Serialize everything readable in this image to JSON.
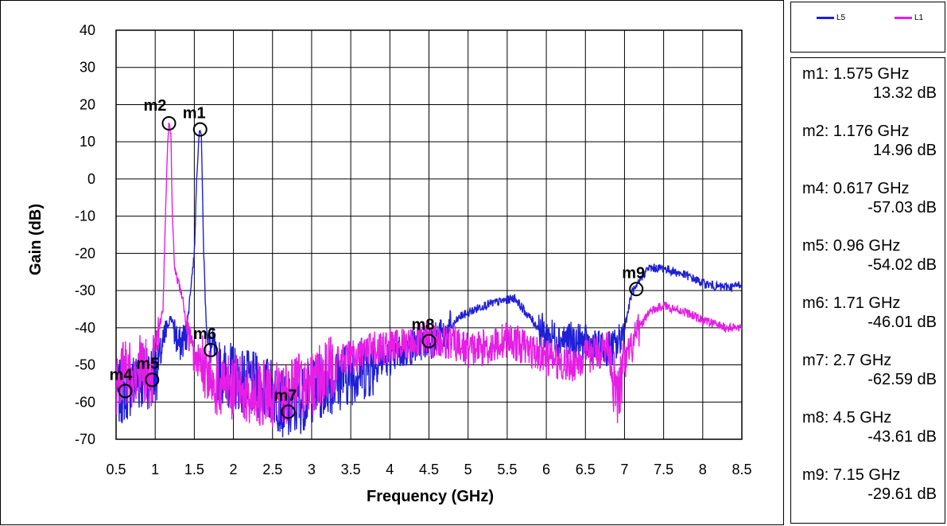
{
  "chart_data": {
    "type": "line",
    "xlabel": "Frequency (GHz)",
    "ylabel": "Gain (dB)",
    "xlim": [
      0.5,
      8.5
    ],
    "ylim": [
      -70,
      40
    ],
    "xticks": [
      "0.5",
      "1",
      "1.5",
      "2",
      "2.5",
      "3",
      "3.5",
      "4",
      "4.5",
      "5",
      "5.5",
      "6",
      "6.5",
      "7",
      "7.5",
      "8",
      "8.5"
    ],
    "yticks": [
      "40",
      "30",
      "20",
      "10",
      "0",
      "-10",
      "-20",
      "-30",
      "-40",
      "-50",
      "-60",
      "-70"
    ],
    "grid": true,
    "legend_position": "top-right",
    "series": [
      {
        "name": "L5",
        "color": "#1f1fd6",
        "x": [
          0.5,
          0.6,
          0.7,
          0.8,
          0.9,
          1.0,
          1.1,
          1.15,
          1.2,
          1.3,
          1.4,
          1.45,
          1.5,
          1.53,
          1.56,
          1.575,
          1.59,
          1.62,
          1.65,
          1.7,
          1.75,
          1.8,
          2.0,
          2.2,
          2.5,
          2.7,
          3.0,
          3.3,
          3.5,
          3.8,
          4.0,
          4.2,
          4.4,
          4.5,
          4.7,
          4.9,
          5.0,
          5.2,
          5.4,
          5.6,
          5.7,
          5.9,
          6.0,
          6.2,
          6.5,
          6.7,
          6.9,
          7.0,
          7.05,
          7.1,
          7.15,
          7.2,
          7.3,
          7.5,
          7.8,
          8.0,
          8.2,
          8.4,
          8.5
        ],
        "y": [
          -58,
          -57,
          -55,
          -54,
          -53,
          -52,
          -45,
          -40,
          -37,
          -45,
          -42,
          -30,
          -20,
          0,
          12,
          13.32,
          12,
          -20,
          -38,
          -46,
          -45,
          -52,
          -53,
          -55,
          -57,
          -62.59,
          -57,
          -54,
          -52,
          -50,
          -48,
          -46,
          -44,
          -43.61,
          -42,
          -37,
          -36,
          -34,
          -33,
          -32,
          -35,
          -40,
          -42,
          -43,
          -44,
          -46,
          -45,
          -40,
          -35,
          -30,
          -29.61,
          -27,
          -24,
          -24,
          -26,
          -28,
          -29,
          -29,
          -28
        ]
      },
      {
        "name": "L1",
        "color": "#e61ee6",
        "x": [
          0.5,
          0.6,
          0.7,
          0.8,
          0.9,
          0.96,
          1.0,
          1.05,
          1.1,
          1.13,
          1.16,
          1.176,
          1.2,
          1.22,
          1.25,
          1.3,
          1.35,
          1.4,
          1.5,
          1.6,
          1.7,
          1.8,
          2.0,
          2.2,
          2.5,
          3.0,
          3.3,
          3.5,
          3.8,
          4.0,
          4.3,
          4.5,
          4.8,
          5.0,
          5.3,
          5.5,
          5.8,
          6.0,
          6.3,
          6.5,
          6.8,
          6.9,
          7.0,
          7.1,
          7.2,
          7.3,
          7.5,
          7.8,
          8.0,
          8.3,
          8.5
        ],
        "y": [
          -55,
          -52,
          -53,
          -50,
          -52,
          -54.02,
          -45,
          -40,
          -35,
          -10,
          10,
          14.96,
          12,
          -10,
          -25,
          -28,
          -32,
          -40,
          -48,
          -50,
          -52,
          -55,
          -56,
          -57,
          -58,
          -55,
          -50,
          -48,
          -46,
          -45,
          -44,
          -43,
          -44,
          -46,
          -45,
          -43,
          -46,
          -48,
          -50,
          -48,
          -45,
          -60,
          -50,
          -45,
          -40,
          -36,
          -34,
          -36,
          -38,
          -40,
          -40
        ]
      }
    ],
    "markers": [
      {
        "id": "m1",
        "freq": "1.575 GHz",
        "gain": "13.32 dB",
        "x": 1.575,
        "y": 13.32
      },
      {
        "id": "m2",
        "freq": "1.176 GHz",
        "gain": "14.96 dB",
        "x": 1.176,
        "y": 14.96
      },
      {
        "id": "m4",
        "freq": "0.617 GHz",
        "gain": "-57.03 dB",
        "x": 0.617,
        "y": -57.03
      },
      {
        "id": "m5",
        "freq": "0.96 GHz",
        "gain": "-54.02 dB",
        "x": 0.96,
        "y": -54.02
      },
      {
        "id": "m6",
        "freq": "1.71 GHz",
        "gain": "-46.01 dB",
        "x": 1.71,
        "y": -46.01
      },
      {
        "id": "m7",
        "freq": "2.7 GHz",
        "gain": "-62.59 dB",
        "x": 2.7,
        "y": -62.59
      },
      {
        "id": "m8",
        "freq": "4.5 GHz",
        "gain": "-43.61 dB",
        "x": 4.5,
        "y": -43.61
      },
      {
        "id": "m9",
        "freq": "7.15 GHz",
        "gain": "-29.61 dB",
        "x": 7.15,
        "y": -29.61
      }
    ]
  }
}
